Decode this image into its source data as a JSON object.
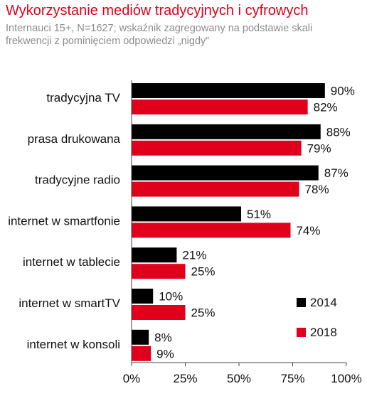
{
  "title": "Wykorzystanie mediów tradycyjnych i cyfrowych",
  "subtitle": "Internauci 15+, N=1627; wskaźnik zagregowany na podstawie skali frekwencji z pominięciem odpowiedzi „nigdy”",
  "colors": {
    "series_2014": "#000000",
    "series_2018": "#e0001b",
    "title": "#e0001b",
    "subtitle": "#8c8c8c",
    "text": "#111111"
  },
  "chart_data": {
    "type": "bar",
    "orientation": "horizontal",
    "categories": [
      "tradycyjna TV",
      "prasa drukowana",
      "tradycyjne radio",
      "internet w smartfonie",
      "internet w tablecie",
      "internet w smartTV",
      "internet w konsoli"
    ],
    "series": [
      {
        "name": "2014",
        "values": [
          90,
          88,
          87,
          51,
          21,
          10,
          8
        ],
        "labels": [
          "90%",
          "88%",
          "87%",
          "51%",
          "21%",
          "10%",
          "8%"
        ]
      },
      {
        "name": "2018",
        "values": [
          82,
          79,
          78,
          74,
          25,
          25,
          9
        ],
        "labels": [
          "82%",
          "79%",
          "78%",
          "74%",
          "25%",
          "25%",
          "9%"
        ]
      }
    ],
    "xlim": [
      0,
      100
    ],
    "xticks": [
      "0%",
      "25%",
      "50%",
      "75%",
      "100%"
    ],
    "legend_position": "bottom-right",
    "grid": false
  }
}
